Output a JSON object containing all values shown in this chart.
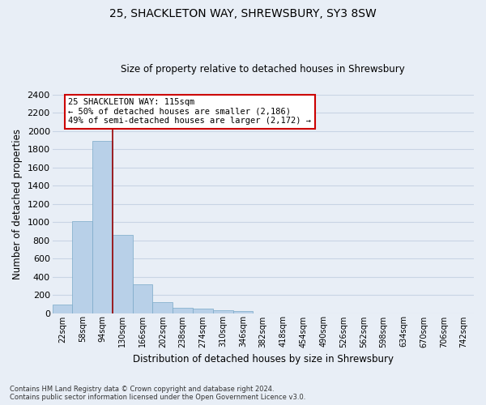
{
  "title": "25, SHACKLETON WAY, SHREWSBURY, SY3 8SW",
  "subtitle": "Size of property relative to detached houses in Shrewsbury",
  "xlabel": "Distribution of detached houses by size in Shrewsbury",
  "ylabel": "Number of detached properties",
  "footer_line1": "Contains HM Land Registry data © Crown copyright and database right 2024.",
  "footer_line2": "Contains public sector information licensed under the Open Government Licence v3.0.",
  "bar_labels": [
    "22sqm",
    "58sqm",
    "94sqm",
    "130sqm",
    "166sqm",
    "202sqm",
    "238sqm",
    "274sqm",
    "310sqm",
    "346sqm",
    "382sqm",
    "418sqm",
    "454sqm",
    "490sqm",
    "526sqm",
    "562sqm",
    "598sqm",
    "634sqm",
    "670sqm",
    "706sqm",
    "742sqm"
  ],
  "bar_values": [
    95,
    1010,
    1890,
    860,
    315,
    120,
    60,
    50,
    30,
    20,
    0,
    0,
    0,
    0,
    0,
    0,
    0,
    0,
    0,
    0,
    0
  ],
  "bar_color": "#b8d0e8",
  "bar_edge_color": "#7aaac8",
  "grid_color": "#c8d4e4",
  "background_color": "#e8eef6",
  "plot_bg_color": "#e8eef6",
  "annotation_text": "25 SHACKLETON WAY: 115sqm\n← 50% of detached houses are smaller (2,186)\n49% of semi-detached houses are larger (2,172) →",
  "vline_color": "#990000",
  "annotation_box_facecolor": "#ffffff",
  "annotation_box_edge_color": "#cc0000",
  "ylim": [
    0,
    2400
  ],
  "yticks": [
    0,
    200,
    400,
    600,
    800,
    1000,
    1200,
    1400,
    1600,
    1800,
    2000,
    2200,
    2400
  ]
}
